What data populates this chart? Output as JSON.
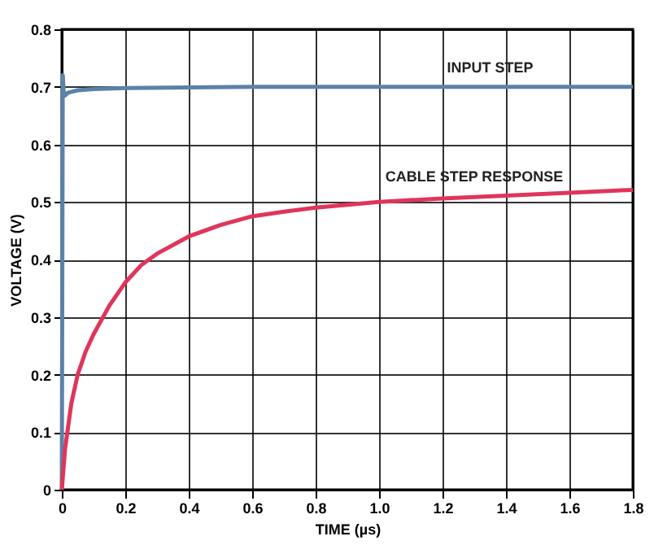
{
  "chart_data": {
    "type": "line",
    "xlabel": "TIME (µs)",
    "ylabel": "VOLTAGE (V)",
    "xlim": [
      0,
      1.8
    ],
    "xticks": [
      0,
      0.2,
      0.4,
      0.6,
      0.8,
      {
        "value": 1,
        "label": "1.0"
      },
      1.2,
      1.4,
      1.6,
      1.8
    ],
    "ylim": [
      0,
      0.8
    ],
    "yticks": [
      0,
      0.1,
      0.2,
      0.3,
      0.4,
      0.5,
      0.6,
      0.7,
      0.8
    ],
    "grid": true,
    "marker": "none",
    "line_style": "solid",
    "series": [
      {
        "color": "#5b82a8",
        "x": [
          0,
          0.003,
          0.006,
          0.01,
          0.02,
          0.05,
          0.1,
          0.2,
          0.4,
          0.6,
          0.8,
          1.0,
          1.2,
          1.4,
          1.6,
          1.8
        ],
        "values": [
          0,
          0.72,
          0.69,
          0.685,
          0.69,
          0.694,
          0.696,
          0.698,
          0.699,
          0.7,
          0.7,
          0.7,
          0.7,
          0.7,
          0.7,
          0.7
        ]
      },
      {
        "color": "#e0355a",
        "x": [
          0,
          0.01,
          0.02,
          0.03,
          0.05,
          0.075,
          0.1,
          0.15,
          0.2,
          0.25,
          0.3,
          0.4,
          0.5,
          0.6,
          0.7,
          0.8,
          0.9,
          1.0,
          1.2,
          1.4,
          1.6,
          1.8
        ],
        "values": [
          0,
          0.07,
          0.11,
          0.15,
          0.2,
          0.24,
          0.27,
          0.32,
          0.36,
          0.39,
          0.41,
          0.44,
          0.46,
          0.475,
          0.483,
          0.49,
          0.495,
          0.5,
          0.506,
          0.511,
          0.516,
          0.521
        ]
      }
    ],
    "annotations": [
      {
        "text": "INPUT STEP",
        "x": 1.35,
        "y": 0.7
      },
      {
        "text": "CABLE STEP RESPONSE",
        "x": 1.3,
        "y": 0.51
      }
    ]
  }
}
